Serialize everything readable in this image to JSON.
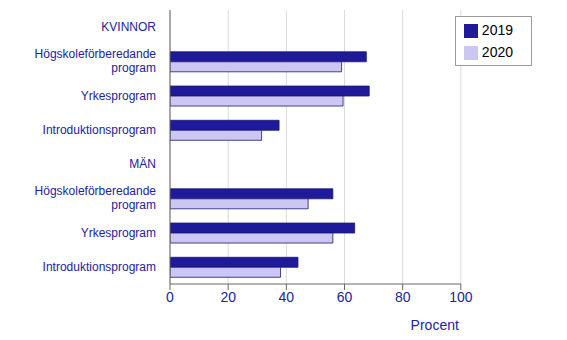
{
  "chart_data": {
    "type": "bar",
    "orientation": "horizontal",
    "categories": [
      "KVINNOR",
      "Högskoleförberedande program",
      "Yrkesprogram",
      "Introduktionsprogram",
      "MÄN",
      "Högskoleförberedande program",
      "Yrkesprogram",
      "Introduktionsprogram"
    ],
    "series": [
      {
        "name": "2019",
        "color": "#1e1a9a",
        "values": [
          null,
          67.5,
          68.5,
          37.5,
          null,
          56,
          63.5,
          44
        ]
      },
      {
        "name": "2020",
        "color": "#cbc6f2",
        "values": [
          null,
          59,
          59.5,
          31.5,
          null,
          47.5,
          56,
          38
        ]
      }
    ],
    "x_label": "Procent",
    "xlim": [
      0,
      100
    ],
    "xticks": [
      0,
      20,
      40,
      60,
      80,
      100
    ],
    "grid": true,
    "legend": "upper right"
  }
}
